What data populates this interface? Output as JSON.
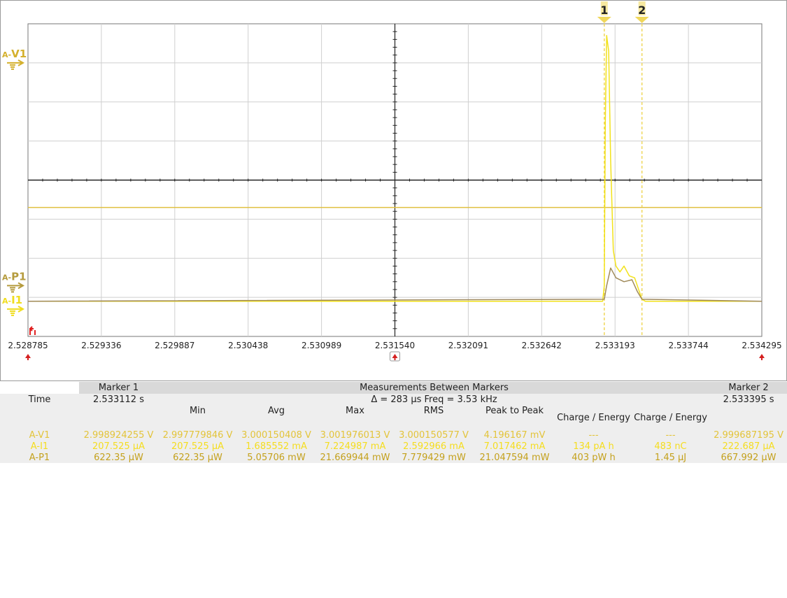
{
  "chart_data": {
    "type": "line",
    "x": [
      2.528785,
      2.529336,
      2.529887,
      2.530438,
      2.530989,
      2.53154,
      2.532091,
      2.532642,
      2.533193,
      2.533744,
      2.534295
    ],
    "xlim": [
      2.528785,
      2.534295
    ],
    "x_tick_labels": [
      "2.528785",
      "2.529336",
      "2.529887",
      "2.530438",
      "2.530989",
      "2.531540",
      "2.532091",
      "2.532642",
      "2.533193",
      "2.533744",
      "2.534295"
    ],
    "grid": true,
    "y_divisions": 8,
    "series": [
      {
        "name": "A-V1",
        "color": "#e0c040",
        "x": [
          2.528785,
          2.534295
        ],
        "y_div": [
          -0.7,
          -0.7
        ]
      },
      {
        "name": "A-I1",
        "color": "#f2e21b",
        "x": [
          2.528785,
          2.5331,
          2.533112,
          2.53312,
          2.53313,
          2.533145,
          2.53316,
          2.53318,
          2.5332,
          2.53323,
          2.53326,
          2.5333,
          2.53334,
          2.53337,
          2.533395,
          2.53342,
          2.534295
        ],
        "y_div": [
          -3.1,
          -3.1,
          -2.7,
          1.5,
          3.7,
          3.3,
          0.5,
          -1.8,
          -2.2,
          -2.35,
          -2.2,
          -2.45,
          -2.5,
          -2.8,
          -3.05,
          -3.1,
          -3.1
        ]
      },
      {
        "name": "A-P1",
        "color": "#a08a5a",
        "x": [
          2.528785,
          2.533112,
          2.53313,
          2.53316,
          2.5332,
          2.53326,
          2.53332,
          2.53336,
          2.533395,
          2.534295
        ],
        "y_div": [
          -3.1,
          -3.05,
          -2.7,
          -2.25,
          -2.5,
          -2.6,
          -2.55,
          -2.85,
          -3.05,
          -3.1
        ]
      }
    ],
    "channels": [
      {
        "prefix": "A-",
        "id": "V1",
        "color": "#d4b02c",
        "level_div": 3.0
      },
      {
        "prefix": "A-",
        "id": "P1",
        "color": "#b59b3d",
        "level_div": -2.7
      },
      {
        "prefix": "A-",
        "id": "I1",
        "color": "#f0dd1e",
        "level_div": -3.3
      }
    ],
    "markers": [
      {
        "label": "1",
        "x": 2.533112
      },
      {
        "label": "2",
        "x": 2.533395
      }
    ],
    "marker_color": "#f0d75a"
  },
  "table": {
    "marker1_header": "Marker 1",
    "between_header": "Measurements Between Markers",
    "marker2_header": "Marker 2",
    "time_label": "Time",
    "marker1_time": "2.533112 s",
    "delta_text": "Δ = 283 µs   Freq = 3.53 kHz",
    "marker2_time": "2.533395 s",
    "columns": [
      "Min",
      "Avg",
      "Max",
      "RMS",
      "Peak to Peak",
      "Charge / Energy",
      "Charge / Energy"
    ],
    "rows": [
      {
        "name": "A-V1",
        "marker1": "2.998924255 V",
        "min": "2.997779846 V",
        "avg": "3.000150408 V",
        "max": "3.001976013 V",
        "rms": "3.000150577 V",
        "p2p": "4.196167 mV",
        "ce1": "---",
        "ce2": "---",
        "marker2": "2.999687195 V"
      },
      {
        "name": "A-I1",
        "marker1": "207.525 µA",
        "min": "207.525 µA",
        "avg": "1.685552 mA",
        "max": "7.224987 mA",
        "rms": "2.592966 mA",
        "p2p": "7.017462 mA",
        "ce1": "134 pA h",
        "ce2": "483 nC",
        "marker2": "222.687 µA"
      },
      {
        "name": "A-P1",
        "marker1": "622.35 µW",
        "min": "622.35 µW",
        "avg": "5.05706 mW",
        "max": "21.669944 mW",
        "rms": "7.779429 mW",
        "p2p": "21.047594 mW",
        "ce1": "403 pW h",
        "ce2": "1.45 µJ",
        "marker2": "667.992 µW"
      }
    ]
  }
}
